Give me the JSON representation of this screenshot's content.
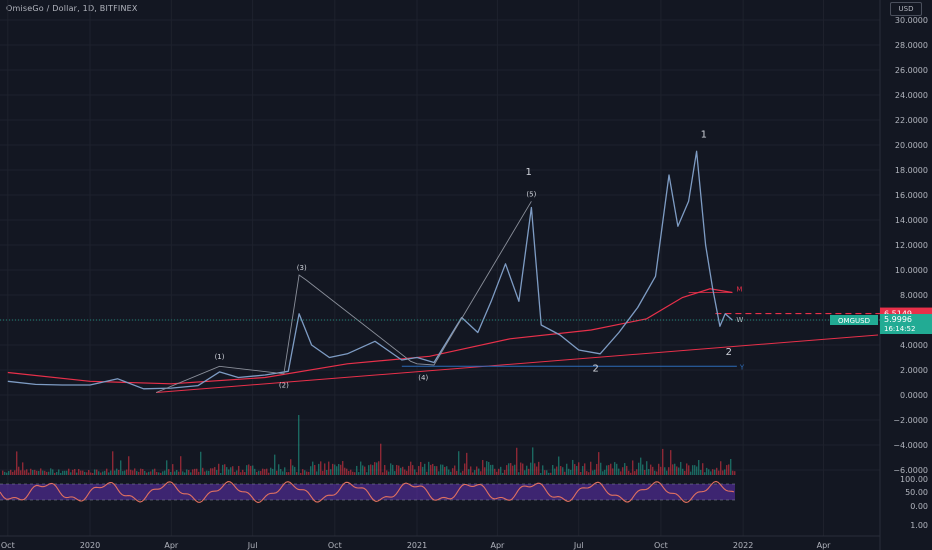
{
  "header": {
    "title": "OmiseGo / Dollar, 1D, BITFINEX",
    "currency": "USD"
  },
  "colors": {
    "background": "#131722",
    "price": "#7e9cc4",
    "moving_average": "#e8304a",
    "wave_lines": "#8a8f9a",
    "support_line": "#2d6bb8",
    "oscillator_band": "#5a2ea6",
    "oscillator_line": "#e07060",
    "volume_up": "#22ab94",
    "volume_down": "#f23645",
    "price_tag": "#22ab94",
    "red_tag": "#e8304a"
  },
  "chart_data": {
    "type": "line",
    "symbol": "OMGUSD",
    "x_ticks": [
      "Oct",
      "2020",
      "Apr",
      "Jul",
      "Oct",
      "2021",
      "Apr",
      "Jul",
      "Oct",
      "2022",
      "Apr"
    ],
    "y_ticks": [
      "30.0000",
      "28.0000",
      "26.0000",
      "24.0000",
      "22.0000",
      "20.0000",
      "18.0000",
      "16.0000",
      "14.0000",
      "12.0000",
      "10.0000",
      "8.0000",
      "6.0000",
      "4.0000",
      "2.0000",
      "0.0000",
      "−2.0000",
      "−4.0000",
      "−6.0000"
    ],
    "oscillator_ticks": [
      "100.00",
      "50.00",
      "0.00",
      "1.00"
    ],
    "ylim": [
      -6,
      31
    ],
    "series": [
      {
        "values": [
          [
            "2019-10-01",
            1.1
          ],
          [
            "2019-11-01",
            0.85
          ],
          [
            "2019-12-01",
            0.8
          ],
          [
            "2020-01-01",
            0.8
          ],
          [
            "2020-02-01",
            1.3
          ],
          [
            "2020-03-01",
            0.5
          ],
          [
            "2020-04-01",
            0.55
          ],
          [
            "2020-05-01",
            0.75
          ],
          [
            "2020-05-25",
            1.85
          ],
          [
            "2020-06-15",
            1.4
          ],
          [
            "2020-07-15",
            1.6
          ],
          [
            "2020-08-10",
            1.9
          ],
          [
            "2020-08-22",
            6.5
          ],
          [
            "2020-09-05",
            4.0
          ],
          [
            "2020-09-25",
            3.0
          ],
          [
            "2020-10-15",
            3.3
          ],
          [
            "2020-11-15",
            4.3
          ],
          [
            "2020-12-15",
            2.8
          ],
          [
            "2021-01-01",
            3.0
          ],
          [
            "2021-01-20",
            2.6
          ],
          [
            "2021-02-20",
            6.2
          ],
          [
            "2021-03-10",
            5.0
          ],
          [
            "2021-03-25",
            7.5
          ],
          [
            "2021-04-10",
            10.5
          ],
          [
            "2021-04-25",
            7.5
          ],
          [
            "2021-05-09",
            15.0
          ],
          [
            "2021-05-20",
            5.6
          ],
          [
            "2021-06-10",
            4.8
          ],
          [
            "2021-07-01",
            3.6
          ],
          [
            "2021-07-25",
            3.3
          ],
          [
            "2021-08-15",
            5.0
          ],
          [
            "2021-09-05",
            7.0
          ],
          [
            "2021-09-25",
            9.5
          ],
          [
            "2021-10-10",
            17.6
          ],
          [
            "2021-10-20",
            13.5
          ],
          [
            "2021-11-01",
            15.5
          ],
          [
            "2021-11-10",
            19.5
          ],
          [
            "2021-11-20",
            12.0
          ],
          [
            "2021-11-28",
            8.5
          ],
          [
            "2021-12-06",
            5.5
          ],
          [
            "2021-12-12",
            6.5
          ],
          [
            "2021-12-20",
            5.99
          ]
        ]
      },
      {
        "values": [
          [
            "2019-10-01",
            1.8
          ],
          [
            "2020-01-01",
            1.1
          ],
          [
            "2020-04-01",
            0.9
          ],
          [
            "2020-07-15",
            1.4
          ],
          [
            "2020-10-15",
            2.5
          ],
          [
            "2021-01-15",
            3.1
          ],
          [
            "2021-04-15",
            4.5
          ],
          [
            "2021-07-15",
            5.2
          ],
          [
            "2021-09-15",
            6.1
          ],
          [
            "2021-10-25",
            7.8
          ],
          [
            "2021-11-25",
            8.5
          ],
          [
            "2021-12-20",
            8.2
          ]
        ]
      }
    ],
    "trend_line": [
      [
        "2020-03-15",
        0.2
      ],
      [
        "2022-06-01",
        4.8
      ]
    ],
    "support_level": {
      "value": 2.3,
      "from": "2020-12-15",
      "to": "2021-12-25",
      "label": "Y"
    },
    "red_level": {
      "value": 6.5149,
      "from": "2021-12-01",
      "to": "2022-06-01",
      "label": "6.5149"
    },
    "level_m": {
      "value": 8.2,
      "label": "M"
    },
    "level_w": {
      "value": 6.0,
      "label": "W"
    },
    "last_price": {
      "value": 5.9996,
      "label": "5.9996",
      "countdown": "16:14:52",
      "symbol": "OMGUSD"
    },
    "wave_path": [
      [
        "2020-03-15",
        0.2
      ],
      [
        "2020-05-25",
        2.3
      ],
      [
        "2020-08-05",
        1.7
      ],
      [
        "2020-08-22",
        9.6
      ],
      [
        "2020-08-30",
        9.2
      ],
      [
        "2020-12-25",
        2.7
      ],
      [
        "2021-01-01",
        2.5
      ],
      [
        "2021-01-20",
        2.4
      ],
      [
        "2021-05-09",
        15.5
      ]
    ],
    "annotations": [
      {
        "text": "(1)",
        "x": "2020-05-25",
        "y": 2.9
      },
      {
        "text": "(2)",
        "x": "2020-08-05",
        "y": 0.6
      },
      {
        "text": "(3)",
        "x": "2020-08-25",
        "y": 10.0
      },
      {
        "text": "(4)",
        "x": "2021-01-08",
        "y": 1.2
      },
      {
        "text": "(5)",
        "x": "2021-05-09",
        "y": 15.9
      },
      {
        "text": "1",
        "x": "2021-05-06",
        "y": 17.6
      },
      {
        "text": "2",
        "x": "2021-07-20",
        "y": 1.9
      },
      {
        "text": "1",
        "x": "2021-11-18",
        "y": 20.6
      },
      {
        "text": "2",
        "x": "2021-12-16",
        "y": 3.2
      }
    ]
  }
}
